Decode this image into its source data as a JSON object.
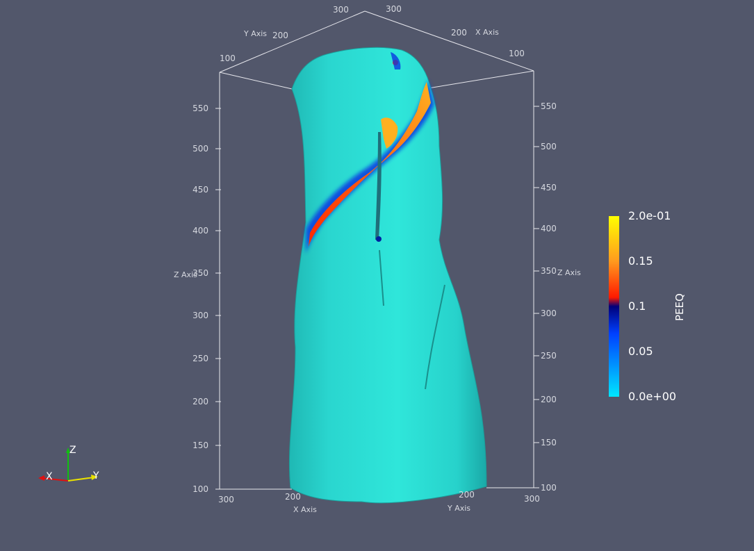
{
  "axes": {
    "z_axis_title": "Z Axis",
    "x_axis_title": "X Axis",
    "y_axis_title": "Y Axis",
    "z_ticks": [
      "100",
      "150",
      "200",
      "250",
      "300",
      "350",
      "400",
      "450",
      "500",
      "550"
    ],
    "bottom_left_ticks": [
      "300",
      "200"
    ],
    "bottom_right_ticks": [
      "200",
      "300"
    ],
    "top_left_ticks": [
      "100",
      "200",
      "300"
    ],
    "top_right_ticks": [
      "300",
      "200",
      "100"
    ],
    "right_z_ticks": [
      "100",
      "150",
      "200",
      "250",
      "300",
      "350",
      "400",
      "450",
      "500",
      "550"
    ]
  },
  "colorbar": {
    "title": "PEEQ",
    "labels": [
      "2.0e-01",
      "0.15",
      "0.1",
      "0.05",
      "0.0e+00"
    ],
    "colors": [
      "#ffff00",
      "#ff9a1e",
      "#ff1a00",
      "#00007a",
      "#0040ff",
      "#0090ff",
      "#00e6ff"
    ]
  },
  "orientation": {
    "x_label": "X",
    "y_label": "Y",
    "z_label": "Z",
    "x_color": "#e01010",
    "y_color": "#e8e000",
    "z_color": "#10c010"
  },
  "surface": {
    "base_color": "#27dcd3",
    "band_colors": [
      "#0040e0",
      "#ff2a00",
      "#ffa020"
    ]
  }
}
